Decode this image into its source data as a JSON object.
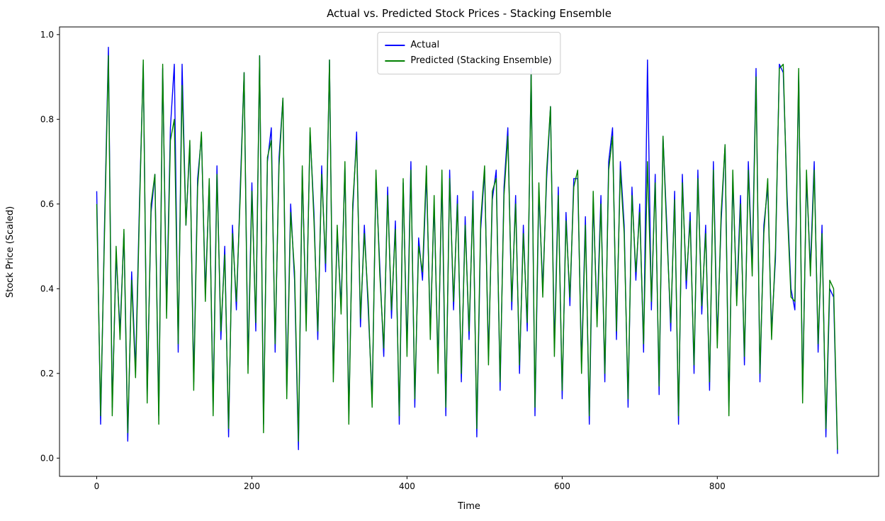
{
  "chart_data": {
    "type": "line",
    "title": "Actual vs. Predicted Stock Prices - Stacking Ensemble",
    "xlabel": "Time",
    "ylabel": "Stock Price (Scaled)",
    "xlim": [
      -48,
      1008
    ],
    "ylim": [
      -0.043,
      1.018
    ],
    "xticks": [
      0,
      200,
      400,
      600,
      800
    ],
    "yticks": [
      0.0,
      0.2,
      0.4,
      0.6,
      0.8,
      1.0
    ],
    "grid": false,
    "legend_position": "upper center",
    "x_start": 0,
    "x_step": 5,
    "series": [
      {
        "name": "Actual",
        "color": "#0000ff",
        "values": [
          0.63,
          0.08,
          0.55,
          0.97,
          0.12,
          0.48,
          0.3,
          0.53,
          0.04,
          0.44,
          0.21,
          0.6,
          0.93,
          0.15,
          0.58,
          0.67,
          0.1,
          0.92,
          0.35,
          0.78,
          0.93,
          0.25,
          0.93,
          0.55,
          0.74,
          0.18,
          0.66,
          0.76,
          0.39,
          0.65,
          0.12,
          0.69,
          0.28,
          0.5,
          0.05,
          0.55,
          0.35,
          0.64,
          0.91,
          0.22,
          0.65,
          0.3,
          0.95,
          0.08,
          0.7,
          0.78,
          0.25,
          0.71,
          0.85,
          0.16,
          0.6,
          0.42,
          0.02,
          0.68,
          0.32,
          0.77,
          0.58,
          0.28,
          0.69,
          0.44,
          0.94,
          0.2,
          0.53,
          0.36,
          0.69,
          0.1,
          0.58,
          0.77,
          0.31,
          0.55,
          0.35,
          0.14,
          0.66,
          0.45,
          0.24,
          0.64,
          0.33,
          0.56,
          0.08,
          0.65,
          0.26,
          0.7,
          0.12,
          0.52,
          0.42,
          0.67,
          0.3,
          0.6,
          0.22,
          0.66,
          0.1,
          0.68,
          0.35,
          0.62,
          0.18,
          0.57,
          0.28,
          0.63,
          0.05,
          0.54,
          0.68,
          0.24,
          0.61,
          0.68,
          0.16,
          0.64,
          0.78,
          0.35,
          0.62,
          0.2,
          0.55,
          0.3,
          0.92,
          0.1,
          0.63,
          0.4,
          0.66,
          0.83,
          0.26,
          0.64,
          0.14,
          0.58,
          0.36,
          0.66,
          0.66,
          0.22,
          0.57,
          0.08,
          0.61,
          0.33,
          0.62,
          0.18,
          0.7,
          0.78,
          0.28,
          0.7,
          0.55,
          0.12,
          0.64,
          0.42,
          0.6,
          0.25,
          0.94,
          0.35,
          0.67,
          0.15,
          0.76,
          0.55,
          0.3,
          0.63,
          0.08,
          0.67,
          0.4,
          0.58,
          0.2,
          0.68,
          0.34,
          0.55,
          0.16,
          0.7,
          0.28,
          0.56,
          0.74,
          0.12,
          0.66,
          0.38,
          0.62,
          0.22,
          0.7,
          0.45,
          0.92,
          0.18,
          0.55,
          0.64,
          0.3,
          0.47,
          0.93,
          0.91,
          0.62,
          0.4,
          0.35,
          0.91,
          0.15,
          0.66,
          0.45,
          0.7,
          0.25,
          0.55,
          0.05,
          0.4,
          0.38,
          0.01
        ]
      },
      {
        "name": "Predicted (Stacking Ensemble)",
        "color": "#008000",
        "values": [
          0.6,
          0.1,
          0.53,
          0.95,
          0.1,
          0.5,
          0.28,
          0.54,
          0.06,
          0.42,
          0.19,
          0.58,
          0.94,
          0.13,
          0.6,
          0.67,
          0.08,
          0.93,
          0.33,
          0.75,
          0.8,
          0.27,
          0.88,
          0.55,
          0.75,
          0.16,
          0.64,
          0.77,
          0.37,
          0.66,
          0.1,
          0.67,
          0.3,
          0.48,
          0.07,
          0.53,
          0.37,
          0.62,
          0.91,
          0.2,
          0.63,
          0.32,
          0.95,
          0.06,
          0.71,
          0.75,
          0.27,
          0.69,
          0.85,
          0.14,
          0.58,
          0.44,
          0.04,
          0.69,
          0.3,
          0.78,
          0.56,
          0.3,
          0.67,
          0.46,
          0.94,
          0.18,
          0.55,
          0.34,
          0.7,
          0.08,
          0.6,
          0.75,
          0.33,
          0.53,
          0.37,
          0.12,
          0.68,
          0.43,
          0.26,
          0.62,
          0.35,
          0.54,
          0.1,
          0.66,
          0.24,
          0.68,
          0.14,
          0.5,
          0.44,
          0.69,
          0.28,
          0.62,
          0.2,
          0.68,
          0.12,
          0.66,
          0.37,
          0.6,
          0.2,
          0.55,
          0.3,
          0.61,
          0.07,
          0.56,
          0.69,
          0.22,
          0.63,
          0.66,
          0.18,
          0.62,
          0.76,
          0.37,
          0.6,
          0.22,
          0.53,
          0.32,
          0.91,
          0.12,
          0.65,
          0.38,
          0.68,
          0.83,
          0.24,
          0.62,
          0.16,
          0.56,
          0.38,
          0.64,
          0.68,
          0.2,
          0.55,
          0.1,
          0.63,
          0.31,
          0.6,
          0.2,
          0.68,
          0.76,
          0.3,
          0.68,
          0.53,
          0.14,
          0.62,
          0.44,
          0.58,
          0.27,
          0.7,
          0.37,
          0.65,
          0.17,
          0.76,
          0.53,
          0.32,
          0.61,
          0.1,
          0.65,
          0.42,
          0.56,
          0.22,
          0.66,
          0.36,
          0.53,
          0.18,
          0.68,
          0.26,
          0.58,
          0.74,
          0.1,
          0.68,
          0.36,
          0.6,
          0.24,
          0.68,
          0.43,
          0.9,
          0.2,
          0.53,
          0.66,
          0.28,
          0.49,
          0.92,
          0.93,
          0.6,
          0.38,
          0.37,
          0.92,
          0.13,
          0.68,
          0.43,
          0.68,
          0.27,
          0.53,
          0.07,
          0.42,
          0.4,
          0.02
        ]
      }
    ]
  }
}
